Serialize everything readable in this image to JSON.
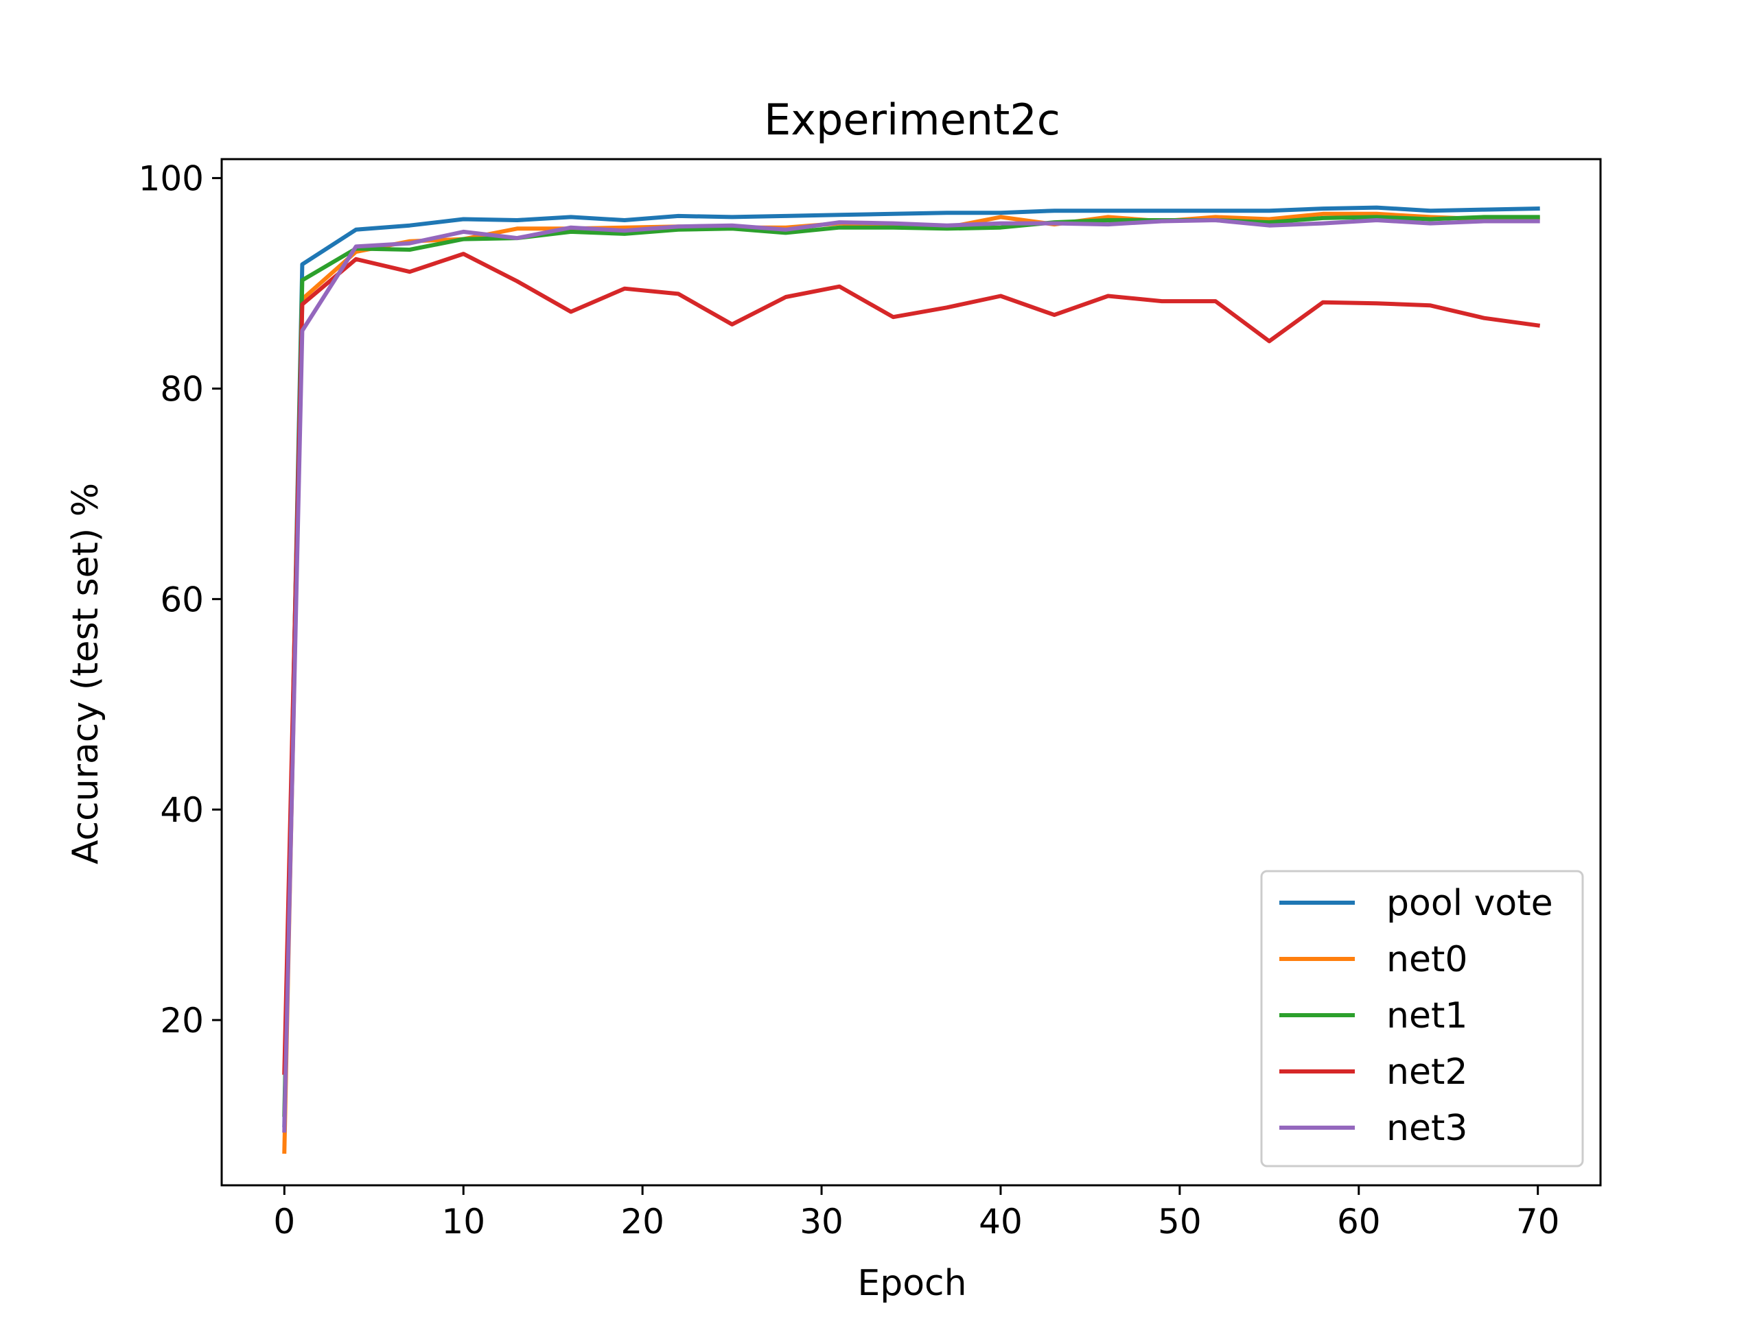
{
  "chart_data": {
    "type": "line",
    "title": "Experiment2c",
    "xlabel": "Epoch",
    "ylabel": "Accuracy (test set) %",
    "xlim": [
      -3.5,
      73.5
    ],
    "ylim": [
      4.3,
      101.8
    ],
    "x_ticks": [
      0,
      10,
      20,
      30,
      40,
      50,
      60,
      70
    ],
    "y_ticks": [
      20,
      40,
      60,
      80,
      100
    ],
    "grid": false,
    "legend_position": "lower right",
    "x": [
      0,
      1,
      4,
      7,
      10,
      13,
      16,
      19,
      22,
      25,
      28,
      31,
      34,
      37,
      40,
      43,
      46,
      49,
      52,
      55,
      58,
      61,
      64,
      67,
      70
    ],
    "series": [
      {
        "name": "pool vote",
        "color": "#1f77b4",
        "values": [
          10.0,
          91.8,
          95.1,
          95.5,
          96.1,
          96.0,
          96.3,
          96.0,
          96.4,
          96.3,
          96.4,
          96.5,
          96.6,
          96.7,
          96.7,
          96.9,
          96.9,
          96.9,
          96.9,
          96.9,
          97.1,
          97.2,
          96.9,
          97.0,
          97.1
        ]
      },
      {
        "name": "net0",
        "color": "#ff7f0e",
        "values": [
          7.5,
          88.5,
          93.0,
          94.0,
          94.2,
          95.2,
          95.2,
          95.3,
          95.4,
          95.3,
          95.3,
          95.7,
          95.4,
          95.3,
          96.3,
          95.6,
          96.3,
          95.9,
          96.3,
          96.1,
          96.6,
          96.6,
          96.3,
          96.1,
          96.2
        ]
      },
      {
        "name": "net1",
        "color": "#2ca02c",
        "values": [
          11.0,
          90.3,
          93.3,
          93.2,
          94.2,
          94.3,
          94.9,
          94.7,
          95.1,
          95.2,
          94.8,
          95.3,
          95.3,
          95.2,
          95.3,
          95.8,
          96.0,
          96.0,
          96.0,
          95.8,
          96.2,
          96.3,
          96.1,
          96.3,
          96.3
        ]
      },
      {
        "name": "net2",
        "color": "#d62728",
        "values": [
          15.0,
          88.0,
          92.3,
          91.1,
          92.8,
          90.2,
          87.3,
          89.5,
          89.0,
          86.1,
          88.7,
          89.7,
          86.8,
          87.7,
          88.8,
          87.0,
          88.8,
          88.3,
          88.3,
          84.5,
          88.2,
          88.1,
          87.9,
          86.7,
          86.0
        ]
      },
      {
        "name": "net3",
        "color": "#9467bd",
        "values": [
          9.5,
          85.5,
          93.5,
          93.8,
          94.9,
          94.3,
          95.3,
          95.0,
          95.4,
          95.5,
          95.1,
          95.8,
          95.7,
          95.5,
          95.7,
          95.7,
          95.6,
          95.9,
          96.0,
          95.5,
          95.7,
          96.0,
          95.7,
          95.9,
          95.9
        ]
      }
    ]
  }
}
